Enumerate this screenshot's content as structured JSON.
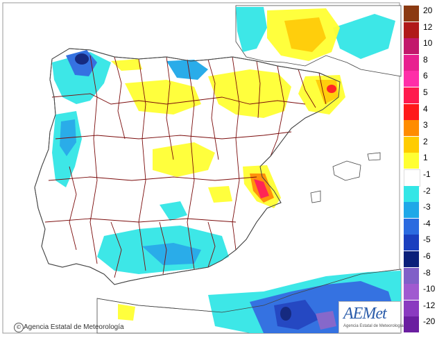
{
  "legend": {
    "levels": [
      {
        "label": "20",
        "color": "#8b3a12"
      },
      {
        "label": "12",
        "color": "#b01a1a"
      },
      {
        "label": "10",
        "color": "#c2186b"
      },
      {
        "label": "8",
        "color": "#e8208f"
      },
      {
        "label": "6",
        "color": "#ff2ea8"
      },
      {
        "label": "5",
        "color": "#ff1a4d"
      },
      {
        "label": "4",
        "color": "#ff1a1a"
      },
      {
        "label": "3",
        "color": "#ff8c00"
      },
      {
        "label": "2",
        "color": "#ffcc00"
      },
      {
        "label": "1",
        "color": "#ffff33"
      },
      {
        "label": "-1",
        "color": "#ffffff"
      },
      {
        "label": "-2",
        "color": "#33e6e6"
      },
      {
        "label": "-3",
        "color": "#1fa8e8"
      },
      {
        "label": "-4",
        "color": "#2b6be0"
      },
      {
        "label": "-5",
        "color": "#1a3fbf"
      },
      {
        "label": "-6",
        "color": "#0a1f7a"
      },
      {
        "label": "-8",
        "color": "#8060c8"
      },
      {
        "label": "-10",
        "color": "#a05ad0"
      },
      {
        "label": "-12",
        "color": "#8a3ac0"
      },
      {
        "label": "-20",
        "color": "#6a1ea0"
      }
    ]
  },
  "credit": {
    "icon": "copyright-icon",
    "symbol": "©",
    "text": "Agencia Estatal de Meteorología"
  },
  "logo": {
    "text": "AEMet",
    "subtitle": "Agencia Estatal de Meteorología"
  },
  "colors": {
    "sea": "#ffffff",
    "land": "#ffffff",
    "border": "#7a0a0a",
    "coast": "#444444"
  }
}
